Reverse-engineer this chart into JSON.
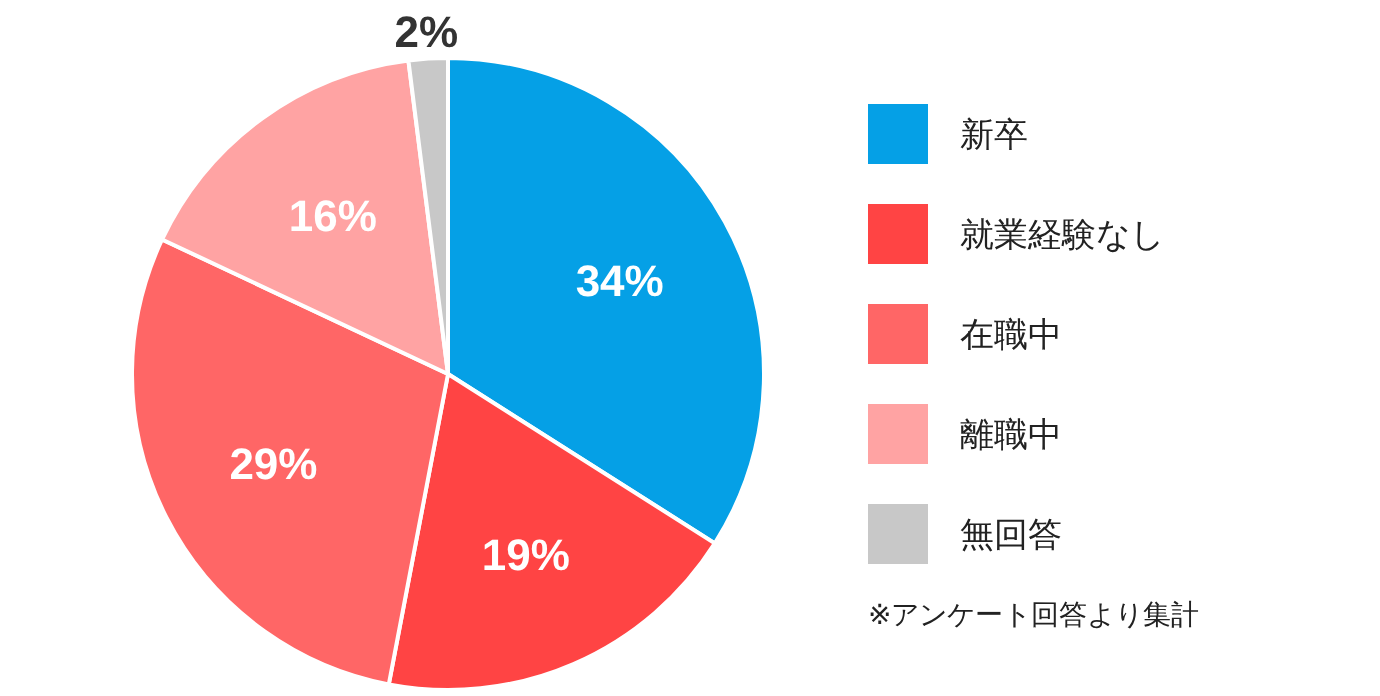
{
  "chart_data": {
    "type": "pie",
    "categories": [
      "新卒",
      "就業経験なし",
      "在職中",
      "離職中",
      "無回答"
    ],
    "values": [
      34,
      19,
      29,
      16,
      2
    ],
    "colors": [
      "#05a0e6",
      "#ff4444",
      "#ff6666",
      "#ffa3a3",
      "#c8c8c8"
    ],
    "value_labels": [
      "34%",
      "19%",
      "29%",
      "16%",
      "2%"
    ],
    "legend": "right",
    "annotations": [
      "※アンケート回答より集計"
    ]
  }
}
